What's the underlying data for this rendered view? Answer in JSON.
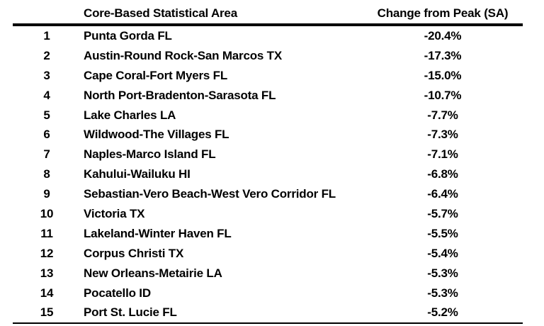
{
  "table": {
    "header": {
      "rank": "",
      "area": "Core-Based Statistical Area",
      "change": "Change from Peak (SA)"
    },
    "rows": [
      {
        "rank": "1",
        "area": "Punta Gorda FL",
        "change": "-20.4%"
      },
      {
        "rank": "2",
        "area": "Austin-Round Rock-San Marcos TX",
        "change": "-17.3%"
      },
      {
        "rank": "3",
        "area": "Cape Coral-Fort Myers FL",
        "change": "-15.0%"
      },
      {
        "rank": "4",
        "area": "North Port-Bradenton-Sarasota FL",
        "change": "-10.7%"
      },
      {
        "rank": "5",
        "area": "Lake Charles LA",
        "change": "-7.7%"
      },
      {
        "rank": "6",
        "area": "Wildwood-The Villages FL",
        "change": "-7.3%"
      },
      {
        "rank": "7",
        "area": "Naples-Marco Island FL",
        "change": "-7.1%"
      },
      {
        "rank": "8",
        "area": "Kahului-Wailuku HI",
        "change": "-6.8%"
      },
      {
        "rank": "9",
        "area": "Sebastian-Vero Beach-West Vero Corridor FL",
        "change": "-6.4%"
      },
      {
        "rank": "10",
        "area": "Victoria TX",
        "change": "-5.7%"
      },
      {
        "rank": "11",
        "area": "Lakeland-Winter Haven FL",
        "change": "-5.5%"
      },
      {
        "rank": "12",
        "area": "Corpus Christi TX",
        "change": "-5.4%"
      },
      {
        "rank": "13",
        "area": "New Orleans-Metairie LA",
        "change": "-5.3%"
      },
      {
        "rank": "14",
        "area": "Pocatello ID",
        "change": "-5.3%"
      },
      {
        "rank": "15",
        "area": "Port St. Lucie FL",
        "change": "-5.2%"
      }
    ],
    "colors": {
      "text": "#000000",
      "background": "#ffffff",
      "rule": "#000000"
    }
  },
  "chart_data": {
    "type": "table",
    "title": "",
    "columns": [
      "",
      "Core-Based Statistical Area",
      "Change from Peak (SA)"
    ],
    "ranks": [
      1,
      2,
      3,
      4,
      5,
      6,
      7,
      8,
      9,
      10,
      11,
      12,
      13,
      14,
      15
    ],
    "areas": [
      "Punta Gorda FL",
      "Austin-Round Rock-San Marcos TX",
      "Cape Coral-Fort Myers FL",
      "North Port-Bradenton-Sarasota FL",
      "Lake Charles LA",
      "Wildwood-The Villages FL",
      "Naples-Marco Island FL",
      "Kahului-Wailuku HI",
      "Sebastian-Vero Beach-West Vero Corridor FL",
      "Victoria TX",
      "Lakeland-Winter Haven FL",
      "Corpus Christi TX",
      "New Orleans-Metairie LA",
      "Pocatello ID",
      "Port St. Lucie FL"
    ],
    "change_from_peak_sa_pct": [
      -20.4,
      -17.3,
      -15.0,
      -10.7,
      -7.7,
      -7.3,
      -7.1,
      -6.8,
      -6.4,
      -5.7,
      -5.5,
      -5.4,
      -5.3,
      -5.3,
      -5.2
    ]
  }
}
